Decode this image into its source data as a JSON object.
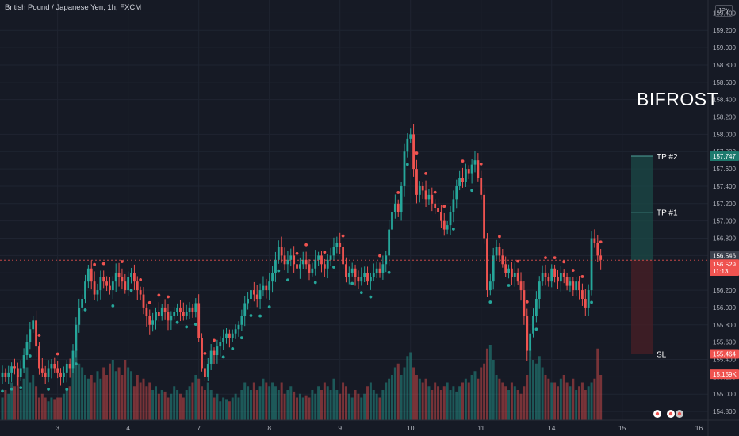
{
  "header": {
    "symbol_title": "British Pound / Japanese Yen, 1h, FXCM",
    "currency": "JPY"
  },
  "branding": {
    "text": "BIFROST"
  },
  "colors": {
    "background": "#161a25",
    "up": "#26a69a",
    "down": "#ef5350",
    "grid": "#1f2431"
  },
  "chart_data": {
    "type": "candlestick",
    "title": "British Pound / Japanese Yen, 1h, FXCM",
    "y_axis": {
      "range": [
        154.7,
        159.55
      ],
      "ticks": [
        "154.800",
        "155.000",
        "155.200",
        "155.400",
        "155.600",
        "155.800",
        "156.000",
        "156.200",
        "156.400",
        "156.600",
        "156.800",
        "157.000",
        "157.200",
        "157.400",
        "157.600",
        "157.800",
        "158.000",
        "158.200",
        "158.400",
        "158.600",
        "158.800",
        "159.000",
        "159.200",
        "159.400"
      ]
    },
    "x_axis": {
      "ticks": [
        {
          "label": "3",
          "i": 18
        },
        {
          "label": "4",
          "i": 41
        },
        {
          "label": "7",
          "i": 64
        },
        {
          "label": "8",
          "i": 87
        },
        {
          "label": "9",
          "i": 110
        },
        {
          "label": "10",
          "i": 133
        },
        {
          "label": "11",
          "i": 156
        },
        {
          "label": "14",
          "i": 179
        },
        {
          "label": "15",
          "i": 202
        },
        {
          "label": "16",
          "i": 227
        }
      ]
    },
    "candles_close": [
      155.25,
      155.2,
      155.25,
      155.32,
      155.3,
      155.2,
      155.3,
      155.45,
      155.6,
      155.75,
      155.85,
      155.55,
      155.3,
      155.25,
      155.2,
      155.3,
      155.35,
      155.3,
      155.25,
      155.2,
      155.25,
      155.35,
      155.3,
      155.5,
      155.8,
      156.0,
      156.1,
      156.3,
      156.45,
      156.3,
      156.15,
      156.2,
      156.35,
      156.3,
      156.25,
      156.2,
      156.3,
      156.4,
      156.35,
      156.3,
      156.2,
      156.35,
      156.4,
      156.3,
      156.2,
      156.15,
      156.0,
      155.9,
      155.8,
      155.85,
      155.95,
      155.9,
      156.0,
      155.95,
      155.85,
      155.9,
      155.95,
      156.0,
      155.95,
      155.9,
      155.95,
      156.0,
      155.95,
      156.05,
      155.65,
      155.3,
      155.2,
      155.35,
      155.5,
      155.45,
      155.55,
      155.6,
      155.65,
      155.7,
      155.65,
      155.7,
      155.75,
      155.8,
      155.9,
      156.05,
      156.1,
      156.2,
      156.15,
      156.1,
      156.2,
      156.25,
      156.2,
      156.3,
      156.4,
      156.55,
      156.7,
      156.6,
      156.5,
      156.55,
      156.6,
      156.5,
      156.45,
      156.5,
      156.55,
      156.5,
      156.4,
      156.45,
      156.55,
      156.6,
      156.5,
      156.45,
      156.55,
      156.6,
      156.7,
      156.75,
      156.7,
      156.5,
      156.35,
      156.4,
      156.45,
      156.35,
      156.3,
      156.35,
      156.4,
      156.3,
      156.35,
      156.4,
      156.45,
      156.4,
      156.5,
      156.6,
      156.9,
      157.1,
      157.2,
      157.1,
      157.4,
      157.8,
      157.95,
      158.0,
      157.6,
      157.3,
      157.4,
      157.35,
      157.25,
      157.3,
      157.2,
      157.15,
      157.1,
      157.0,
      156.9,
      156.95,
      157.1,
      157.25,
      157.4,
      157.5,
      157.45,
      157.6,
      157.55,
      157.65,
      157.7,
      157.5,
      157.3,
      156.8,
      156.2,
      156.3,
      156.6,
      156.7,
      156.6,
      156.5,
      156.4,
      156.45,
      156.35,
      156.4,
      156.3,
      156.2,
      155.9,
      155.5,
      155.7,
      155.9,
      156.1,
      156.3,
      156.4,
      156.35,
      156.3,
      156.45,
      156.35,
      156.3,
      156.4,
      156.35,
      156.25,
      156.3,
      156.2,
      156.3,
      156.2,
      156.1,
      156.0,
      156.2,
      156.8,
      156.75,
      156.6,
      156.55
    ],
    "volume_scale": [
      0.3,
      0.4,
      0.35,
      0.5,
      0.45,
      0.6,
      0.4,
      0.55,
      0.7,
      0.5,
      0.6,
      0.45,
      0.3,
      0.35,
      0.3,
      0.25,
      0.3,
      0.28,
      0.3,
      0.3,
      0.35,
      0.4,
      0.45,
      0.8,
      0.95,
      0.75,
      0.7,
      0.6,
      0.55,
      0.6,
      0.5,
      0.65,
      0.55,
      0.7,
      0.6,
      0.75,
      0.8,
      0.65,
      0.7,
      0.6,
      0.8,
      0.7,
      0.65,
      0.45,
      0.6,
      0.5,
      0.55,
      0.45,
      0.5,
      0.4,
      0.45,
      0.35,
      0.4,
      0.38,
      0.3,
      0.35,
      0.45,
      0.4,
      0.35,
      0.3,
      0.4,
      0.45,
      0.5,
      0.6,
      0.55,
      0.45,
      0.4,
      0.5,
      0.4,
      0.3,
      0.35,
      0.25,
      0.3,
      0.28,
      0.25,
      0.3,
      0.35,
      0.3,
      0.4,
      0.5,
      0.45,
      0.4,
      0.5,
      0.4,
      0.45,
      0.55,
      0.5,
      0.45,
      0.5,
      0.45,
      0.4,
      0.5,
      0.35,
      0.4,
      0.45,
      0.38,
      0.3,
      0.35,
      0.3,
      0.33,
      0.3,
      0.4,
      0.35,
      0.45,
      0.4,
      0.5,
      0.45,
      0.4,
      0.55,
      0.4,
      0.35,
      0.5,
      0.45,
      0.35,
      0.3,
      0.4,
      0.35,
      0.3,
      0.35,
      0.45,
      0.5,
      0.4,
      0.35,
      0.3,
      0.4,
      0.5,
      0.55,
      0.6,
      0.7,
      0.75,
      0.6,
      0.7,
      0.85,
      0.9,
      0.7,
      0.6,
      0.55,
      0.5,
      0.55,
      0.45,
      0.4,
      0.5,
      0.45,
      0.4,
      0.45,
      0.5,
      0.4,
      0.45,
      0.38,
      0.45,
      0.5,
      0.55,
      0.5,
      0.6,
      0.65,
      0.55,
      0.7,
      0.75,
      0.95,
      1.0,
      0.8,
      0.6,
      0.55,
      0.5,
      0.45,
      0.4,
      0.5,
      0.45,
      0.4,
      0.35,
      0.45,
      0.6,
      0.95,
      0.8,
      0.75,
      0.85,
      0.7,
      0.6,
      0.55,
      0.5,
      0.5,
      0.45,
      0.55,
      0.6,
      0.5,
      0.45,
      0.55,
      0.4,
      0.45,
      0.5,
      0.4,
      0.45,
      0.5,
      0.55,
      0.95,
      0.6,
      0.5,
      0.55,
      0.45
    ],
    "price_labels": {
      "tp2": "157.747",
      "current": "156.546",
      "last": "156.529",
      "countdown": "11:13",
      "sl": "155.464",
      "prev": "15.159K"
    },
    "levels": [
      {
        "name": "TP #2",
        "value": 157.747
      },
      {
        "name": "TP #1",
        "value": 157.1
      },
      {
        "name": "SL",
        "value": 155.464
      }
    ],
    "entry": 156.546
  }
}
